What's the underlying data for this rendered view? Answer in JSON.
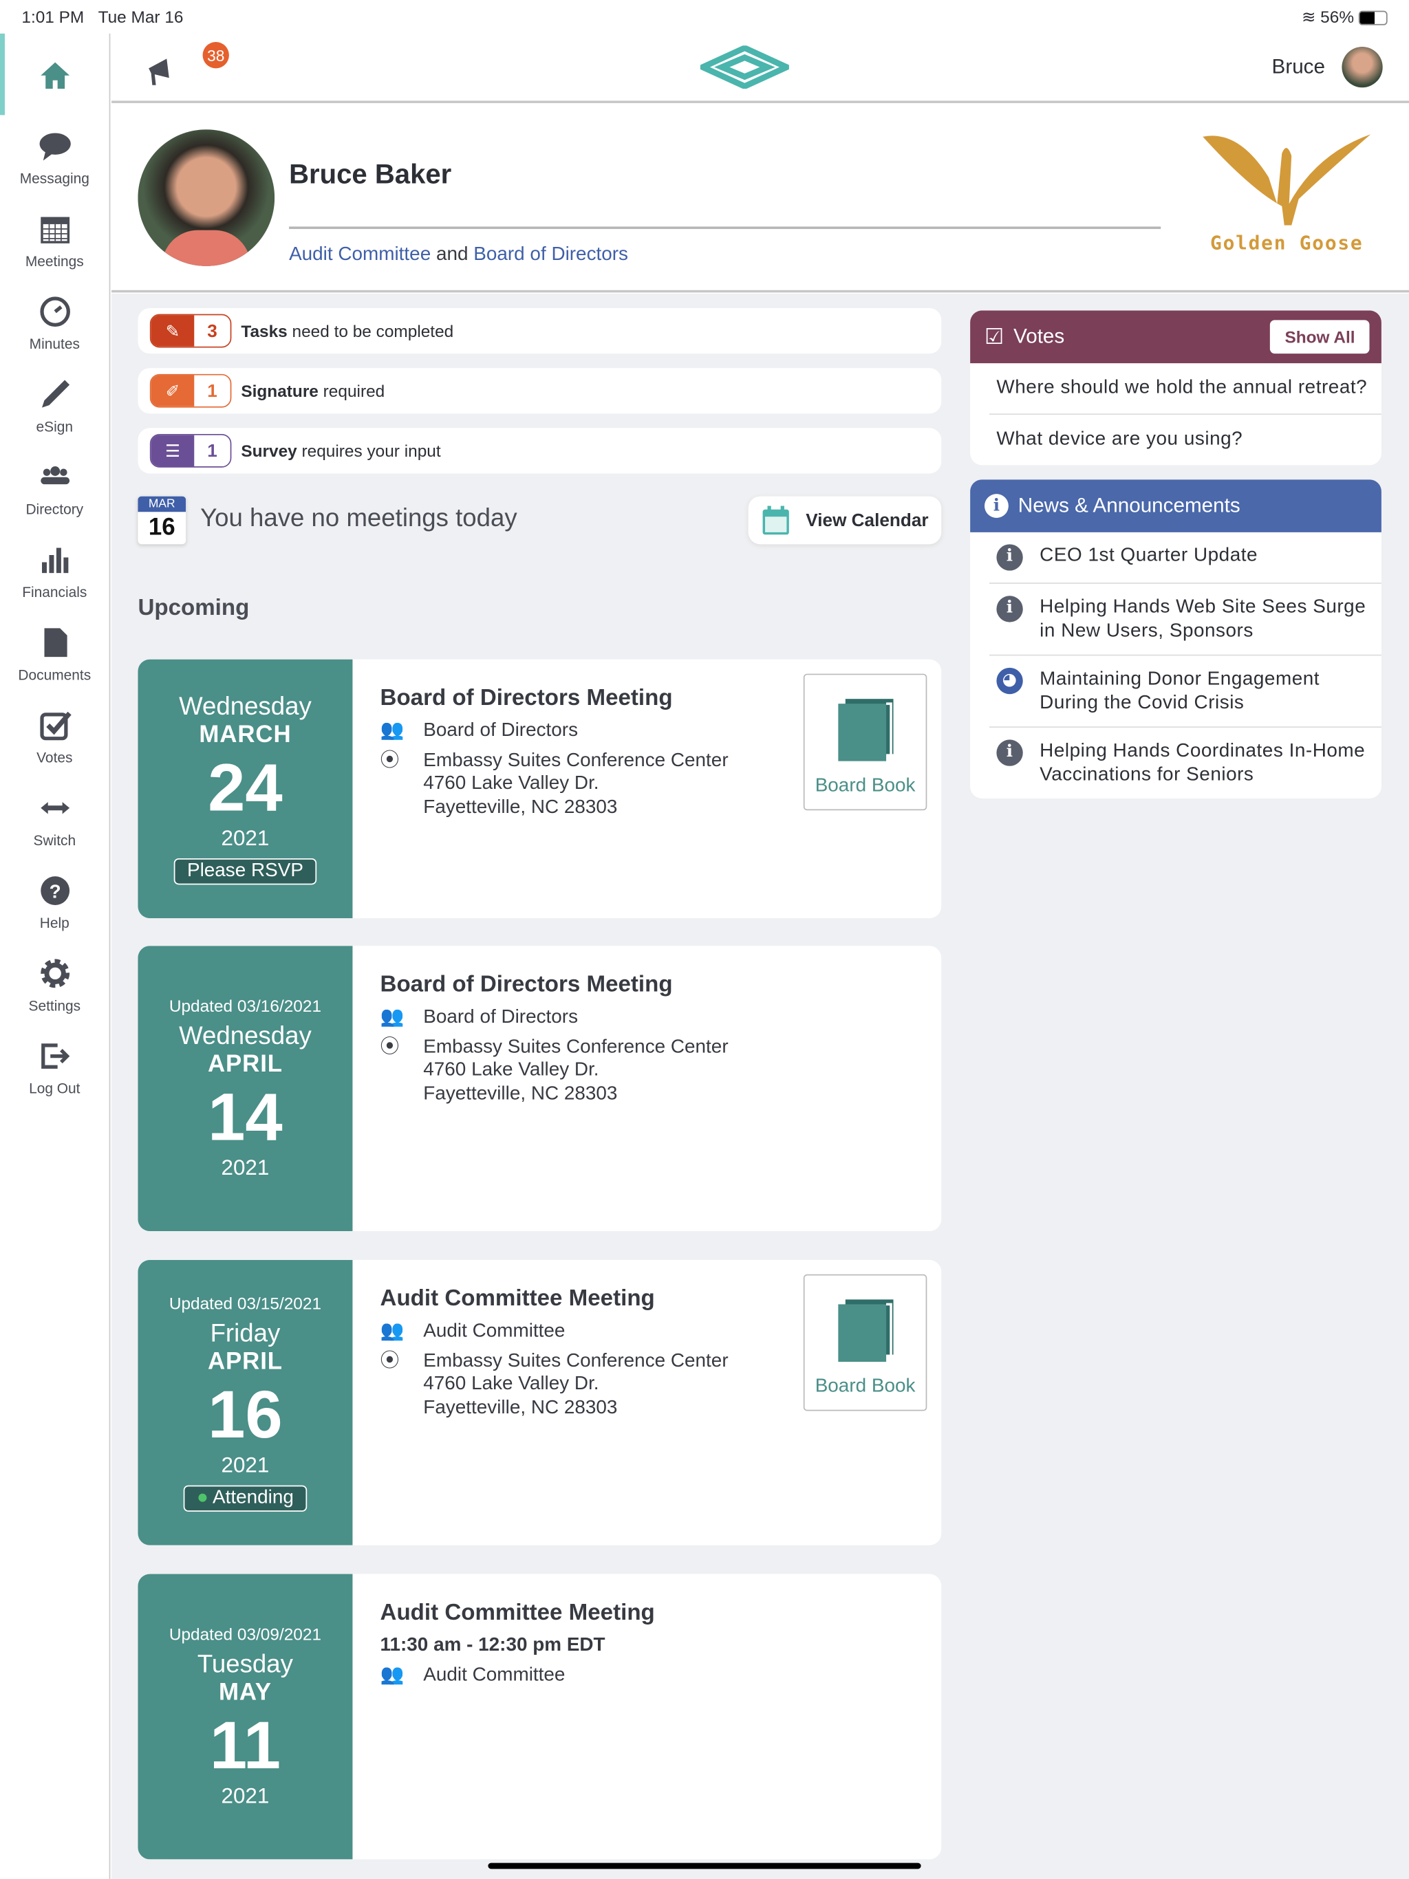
{
  "status": {
    "time": "1:01 PM",
    "date": "Tue Mar 16",
    "battery": "56%"
  },
  "sidebar": {
    "items": [
      {
        "label": "",
        "icon": "home-icon"
      },
      {
        "label": "Messaging",
        "icon": "chat-icon"
      },
      {
        "label": "Meetings",
        "icon": "calendar-icon"
      },
      {
        "label": "Minutes",
        "icon": "clock-icon"
      },
      {
        "label": "eSign",
        "icon": "pen-icon"
      },
      {
        "label": "Directory",
        "icon": "people-icon"
      },
      {
        "label": "Financials",
        "icon": "bar-chart-icon"
      },
      {
        "label": "Documents",
        "icon": "document-icon"
      },
      {
        "label": "Votes",
        "icon": "checkbox-icon"
      },
      {
        "label": "Switch",
        "icon": "arrows-icon"
      },
      {
        "label": "Help",
        "icon": "help-icon"
      },
      {
        "label": "Settings",
        "icon": "gear-icon"
      },
      {
        "label": "Log Out",
        "icon": "logout-icon"
      }
    ]
  },
  "topbar": {
    "notifications": "38",
    "user": "Bruce"
  },
  "profile": {
    "name": "Bruce Baker",
    "committee1": "Audit Committee",
    "and": "and",
    "committee2": "Board of Directors",
    "org": "Golden Goose"
  },
  "tasks": [
    {
      "count": "3",
      "bold": "Tasks",
      "text": "need to be completed",
      "color": "#c8401f"
    },
    {
      "count": "1",
      "bold": "Signature",
      "text": "required",
      "color": "#e56a35"
    },
    {
      "count": "1",
      "bold": "Survey",
      "text": "requires your input",
      "color": "#6b4f96"
    }
  ],
  "today": {
    "month": "MAR",
    "day": "16",
    "message": "You have no meetings today",
    "button": "View Calendar"
  },
  "upcoming_label": "Upcoming",
  "meetings": [
    {
      "updated": "",
      "dow": "Wednesday",
      "month": "MARCH",
      "day": "24",
      "year": "2021",
      "tag": "Please RSVP",
      "title": "Board of Directors Meeting",
      "time": "",
      "group": "Board of Directors",
      "location": [
        "Embassy Suites Conference Center",
        "4760 Lake Valley Dr.",
        "Fayetteville, NC 28303"
      ],
      "board_book": "Board Book"
    },
    {
      "updated": "Updated 03/16/2021",
      "dow": "Wednesday",
      "month": "APRIL",
      "day": "14",
      "year": "2021",
      "tag": "",
      "title": "Board of Directors Meeting",
      "time": "",
      "group": "Board of Directors",
      "location": [
        "Embassy Suites Conference Center",
        "4760 Lake Valley Dr.",
        "Fayetteville, NC 28303"
      ],
      "board_book": ""
    },
    {
      "updated": "Updated 03/15/2021",
      "dow": "Friday",
      "month": "APRIL",
      "day": "16",
      "year": "2021",
      "tag": "Attending",
      "title": "Audit Committee Meeting",
      "time": "",
      "group": "Audit Committee",
      "location": [
        "Embassy Suites Conference Center",
        "4760 Lake Valley Dr.",
        "Fayetteville, NC 28303"
      ],
      "board_book": "Board Book"
    },
    {
      "updated": "Updated 03/09/2021",
      "dow": "Tuesday",
      "month": "MAY",
      "day": "11",
      "year": "2021",
      "tag": "",
      "title": "Audit Committee Meeting",
      "time": "11:30 am - 12:30 pm EDT",
      "group": "Audit Committee",
      "location": [],
      "board_book": ""
    }
  ],
  "votes": {
    "title": "Votes",
    "show_all": "Show All",
    "items": [
      "Where should we hold the annual retreat?",
      "What device are you using?"
    ],
    "color": "#7b3f58"
  },
  "news": {
    "title": "News & Announcements",
    "color": "#4a68aa",
    "items": [
      {
        "text": "CEO 1st Quarter Update",
        "icon": "info-icon"
      },
      {
        "text": "Helping Hands Web Site Sees Surge in New Users, Sponsors",
        "icon": "info-icon"
      },
      {
        "text": "Maintaining Donor Engagement During the Covid Crisis",
        "icon": "globe-icon"
      },
      {
        "text": "Helping Hands Coordinates In-Home Vaccinations for Seniors",
        "icon": "info-icon"
      }
    ]
  }
}
